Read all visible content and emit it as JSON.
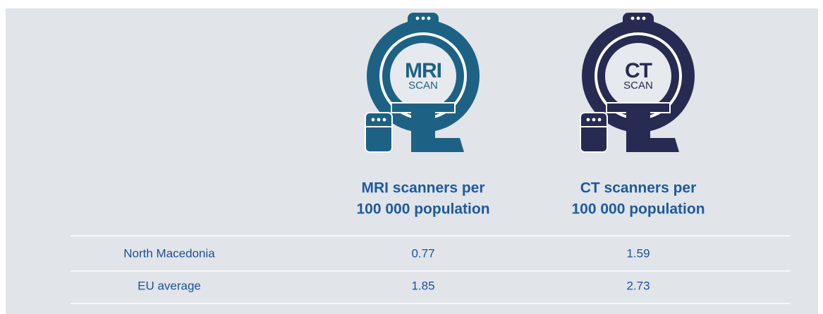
{
  "table": {
    "columns": [
      {
        "icon_title": "MRI",
        "icon_subtitle": "SCAN",
        "color": "#1d6284",
        "header_lines": [
          "MRI scanners per",
          "100 000 population"
        ]
      },
      {
        "icon_title": "CT",
        "icon_subtitle": "SCAN",
        "color": "#272b52",
        "header_lines": [
          "CT scanners per",
          "100 000 population"
        ]
      }
    ],
    "rows": [
      {
        "label": "North Macedonia",
        "values": [
          0.77,
          1.59
        ]
      },
      {
        "label": "EU average",
        "values": [
          1.85,
          2.73
        ]
      }
    ]
  }
}
